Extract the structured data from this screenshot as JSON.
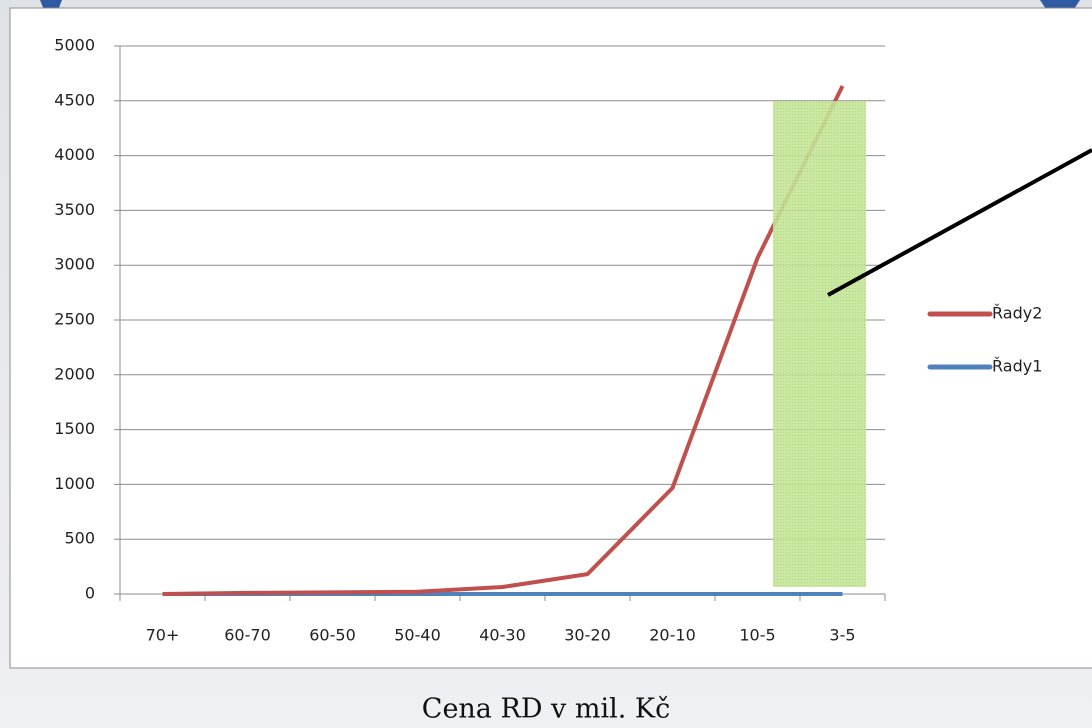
{
  "chart_data": {
    "type": "line",
    "xlabel": "Cena RD v mil. Kč",
    "categories": [
      "70+",
      "60-70",
      "60-50",
      "50-40",
      "40-30",
      "30-20",
      "20-10",
      "10-5",
      "3-5"
    ],
    "series": [
      {
        "name": "Řady2",
        "color": "#c0504d",
        "values": [
          0,
          10,
          15,
          20,
          64,
          182,
          967,
          3066,
          4635
        ]
      },
      {
        "name": "Řady1",
        "color": "#4f81bd",
        "values": [
          0,
          0,
          0,
          0,
          0,
          0,
          0,
          0,
          0
        ]
      }
    ],
    "ylim": [
      0,
      5000
    ],
    "yticks": [
      0,
      500,
      1000,
      1500,
      2000,
      2500,
      3000,
      3500,
      4000,
      4500,
      5000
    ],
    "grid": true,
    "legend": "right"
  }
}
